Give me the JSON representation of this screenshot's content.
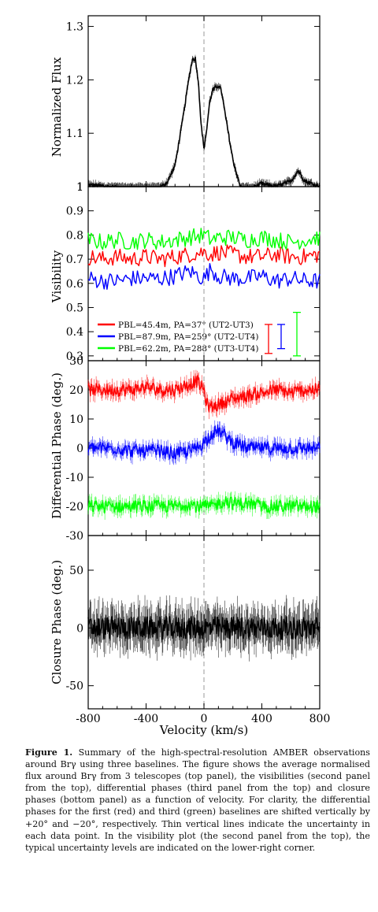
{
  "caption": {
    "label": "Figure 1.",
    "text": "Summary of the high-spectral-resolution AMBER observations around Brγ using three baselines. The figure shows the average normalised flux around Brγ from 3 telescopes (top panel), the visibilities (second panel from the top), differential phases (third panel from the top) and closure phases (bottom panel) as a function of velocity. For clarity, the differential phases for the first (red) and third (green) baselines are shifted vertically by +20° and −20°, respectively. Thin vertical lines indicate the uncertainty in each data point. In the visibility plot (the second panel from the top), the typical uncertainty levels are indicated on the lower-right corner."
  },
  "xaxis": {
    "label": "Velocity (km/s)",
    "range": [
      -800,
      800
    ],
    "ticks": [
      -800,
      -400,
      0,
      400,
      800
    ],
    "tick_labels": [
      "-800",
      "-400",
      "0",
      "400",
      "800"
    ]
  },
  "colors": {
    "red": "#ff0000",
    "blue": "#0000ff",
    "green": "#00ff00",
    "black": "#000000",
    "zero_line": "#bbbbbb"
  },
  "chart_data": [
    {
      "type": "line",
      "ylabel": "Normalized Flux",
      "ylim": [
        1.0,
        1.32
      ],
      "yticks": [
        1,
        1.1,
        1.2,
        1.3
      ],
      "ytick_labels": [
        "1",
        "1.1",
        "1.2",
        "1.3"
      ],
      "x": [
        -800,
        -700,
        -600,
        -500,
        -440,
        -400,
        -300,
        -250,
        -200,
        -150,
        -100,
        -80,
        -60,
        -40,
        -20,
        0,
        20,
        40,
        60,
        80,
        100,
        120,
        150,
        200,
        250,
        300,
        350,
        400,
        500,
        600,
        650,
        700,
        800
      ],
      "series": [
        {
          "color": "black",
          "values": [
            1.003,
            1.001,
            0.998,
            0.995,
            0.985,
            0.993,
            0.998,
            1.01,
            1.04,
            1.12,
            1.21,
            1.238,
            1.24,
            1.2,
            1.12,
            1.07,
            1.11,
            1.16,
            1.18,
            1.185,
            1.19,
            1.18,
            1.13,
            1.05,
            1.0,
            0.99,
            1.0,
            1.005,
            1.0,
            1.01,
            1.03,
            1.01,
            1.0
          ]
        }
      ]
    },
    {
      "type": "line",
      "ylabel": "Visibility",
      "ylim": [
        0.28,
        1.0
      ],
      "yticks": [
        0.3,
        0.4,
        0.5,
        0.6,
        0.7,
        0.8,
        0.9,
        1
      ],
      "ytick_labels": [
        "0.3",
        "0.4",
        "0.5",
        "0.6",
        "0.7",
        "0.8",
        "0.9",
        "1"
      ],
      "legend": [
        "PBL=45.4m, PA=37° (UT2-UT3)",
        "PBL=87.9m, PA=259° (UT2-UT4)",
        "PBL=62.2m, PA=288° (UT3-UT4)"
      ],
      "x": [
        -800,
        -700,
        -600,
        -500,
        -400,
        -300,
        -200,
        -100,
        0,
        50,
        100,
        200,
        300,
        400,
        500,
        600,
        700,
        800
      ],
      "series": [
        {
          "name": "PBL=45.4m, PA=37° (UT2-UT3)",
          "color": "red",
          "values": [
            0.71,
            0.7,
            0.71,
            0.7,
            0.71,
            0.7,
            0.71,
            0.72,
            0.73,
            0.72,
            0.73,
            0.72,
            0.71,
            0.71,
            0.72,
            0.71,
            0.71,
            0.72
          ]
        },
        {
          "name": "PBL=87.9m, PA=259° (UT2-UT4)",
          "color": "blue",
          "values": [
            0.62,
            0.61,
            0.61,
            0.62,
            0.62,
            0.62,
            0.63,
            0.65,
            0.62,
            0.66,
            0.63,
            0.62,
            0.62,
            0.63,
            0.61,
            0.62,
            0.61,
            0.61
          ]
        },
        {
          "name": "PBL=62.2m, PA=288° (UT3-UT4)",
          "color": "green",
          "values": [
            0.78,
            0.77,
            0.78,
            0.77,
            0.78,
            0.77,
            0.78,
            0.79,
            0.8,
            0.78,
            0.79,
            0.79,
            0.78,
            0.79,
            0.78,
            0.77,
            0.78,
            0.79
          ]
        }
      ],
      "uncertainty_bars": [
        {
          "color": "red",
          "center": 0.37,
          "half_height": 0.06
        },
        {
          "color": "blue",
          "center": 0.38,
          "half_height": 0.05
        },
        {
          "color": "green",
          "center": 0.39,
          "half_height": 0.09
        }
      ]
    },
    {
      "type": "line",
      "ylabel": "Differential Phase (deg.)",
      "ylim": [
        -30,
        30
      ],
      "yticks": [
        -30,
        -20,
        -10,
        0,
        10,
        20,
        30
      ],
      "ytick_labels": [
        "-30",
        "-20",
        "-10",
        "0",
        "10",
        "20",
        "30"
      ],
      "x": [
        -800,
        -700,
        -600,
        -500,
        -400,
        -300,
        -200,
        -100,
        -50,
        0,
        20,
        50,
        100,
        150,
        200,
        300,
        400,
        500,
        600,
        700,
        800
      ],
      "series": [
        {
          "color": "red",
          "values": [
            20,
            20,
            20,
            20,
            21,
            20,
            20,
            22,
            23,
            20,
            15,
            14,
            15,
            16,
            17,
            18,
            19,
            20,
            19,
            20,
            20
          ]
        },
        {
          "color": "blue",
          "values": [
            0,
            0,
            0,
            -1,
            -1,
            -1,
            -2,
            -1,
            0,
            2,
            3,
            5,
            6,
            4,
            2,
            0,
            0,
            0,
            0,
            0,
            0
          ]
        },
        {
          "color": "green",
          "values": [
            -20,
            -20,
            -20,
            -20,
            -20,
            -20,
            -20,
            -19,
            -20,
            -20,
            -20,
            -20,
            -19,
            -18,
            -19,
            -19,
            -20,
            -20,
            -20,
            -20,
            -20
          ]
        }
      ]
    },
    {
      "type": "line",
      "ylabel": "Closure Phase (deg.)",
      "ylim": [
        -70,
        80
      ],
      "yticks": [
        -50,
        0,
        50
      ],
      "ytick_labels": [
        "-50",
        "0",
        "50"
      ],
      "x": [
        -800,
        -600,
        -400,
        -200,
        0,
        200,
        400,
        600,
        800
      ],
      "series": [
        {
          "color": "black",
          "values": [
            0,
            0,
            0,
            0,
            0,
            0,
            0,
            0,
            0
          ]
        }
      ]
    }
  ]
}
